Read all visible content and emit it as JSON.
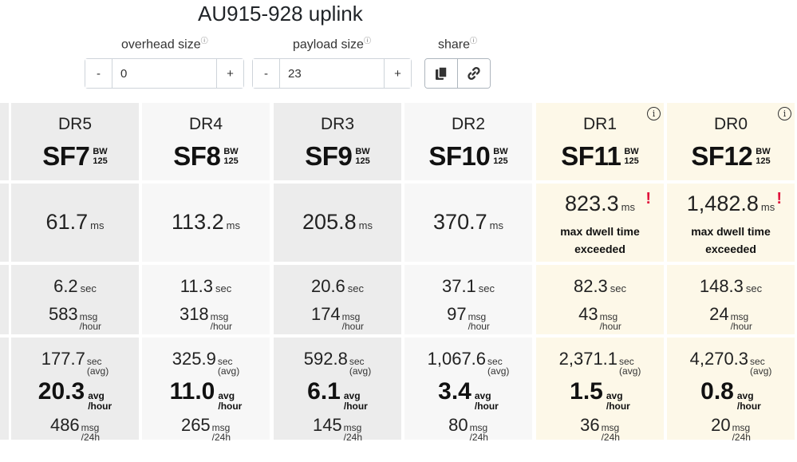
{
  "title": "AU915-928 uplink",
  "controls": {
    "overhead": {
      "label": "overhead size",
      "info": "ⓘ",
      "minus": "-",
      "plus": "+",
      "value": "0"
    },
    "payload": {
      "label": "payload size",
      "info": "ⓘ",
      "minus": "-",
      "plus": "+",
      "value": "23"
    },
    "share": {
      "label": "share",
      "info": "ⓘ",
      "copy_icon": "copy-icon",
      "link_icon": "link-icon"
    }
  },
  "units": {
    "bw": "BW",
    "bw_val": "125",
    "ms": "ms",
    "sec": "sec",
    "msg": "msg",
    "per_hour": "/hour",
    "avg": "avg",
    "avg_paren": "(avg)",
    "per_24h": "/24h",
    "warn": "!",
    "info": "i"
  },
  "columns": [
    {
      "dr": "DR5",
      "sf": "SF7",
      "airtime": "61.7",
      "interval": "6.2",
      "msg_hour": "583",
      "avg_interval": "177.7",
      "avg_hour": "20.3",
      "msg_24h": "486"
    },
    {
      "dr": "DR4",
      "sf": "SF8",
      "airtime": "113.2",
      "interval": "11.3",
      "msg_hour": "318",
      "avg_interval": "325.9",
      "avg_hour": "11.0",
      "msg_24h": "265"
    },
    {
      "dr": "DR3",
      "sf": "SF9",
      "airtime": "205.8",
      "interval": "20.6",
      "msg_hour": "174",
      "avg_interval": "592.8",
      "avg_hour": "6.1",
      "msg_24h": "145"
    },
    {
      "dr": "DR2",
      "sf": "SF10",
      "airtime": "370.7",
      "interval": "37.1",
      "msg_hour": "97",
      "avg_interval": "1,067.6",
      "avg_hour": "3.4",
      "msg_24h": "80"
    },
    {
      "dr": "DR1",
      "sf": "SF11",
      "airtime": "823.3",
      "warning": "max dwell time exceeded",
      "interval": "82.3",
      "msg_hour": "43",
      "avg_interval": "2,371.1",
      "avg_hour": "1.5",
      "msg_24h": "36"
    },
    {
      "dr": "DR0",
      "sf": "SF12",
      "airtime": "1,482.8",
      "warning": "max dwell time exceeded",
      "interval": "148.3",
      "msg_hour": "24",
      "avg_interval": "4,270.3",
      "avg_hour": "0.8",
      "msg_24h": "20"
    }
  ],
  "colors": {
    "dark": "#ececec",
    "light": "#f7f7f7",
    "warn_bg": "#fdf8e8",
    "warn_mark": "#e0103a"
  }
}
